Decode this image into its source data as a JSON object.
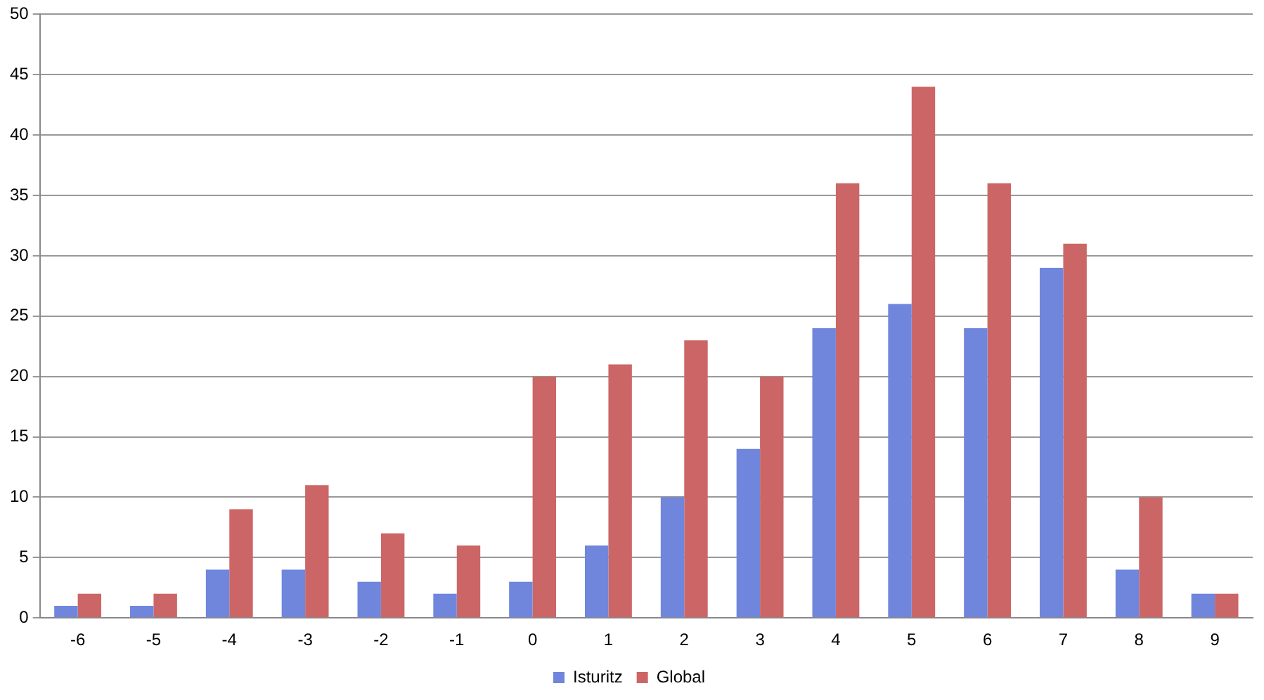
{
  "chart_data": {
    "type": "bar",
    "categories": [
      "-6",
      "-5",
      "-4",
      "-3",
      "-2",
      "-1",
      "0",
      "1",
      "2",
      "3",
      "4",
      "5",
      "6",
      "7",
      "8",
      "9"
    ],
    "series": [
      {
        "name": "Isturitz",
        "color": "#6f86dc",
        "values": [
          1,
          1,
          4,
          4,
          3,
          2,
          3,
          6,
          10,
          14,
          24,
          26,
          24,
          29,
          4,
          2
        ]
      },
      {
        "name": "Global",
        "color": "#cc6666",
        "values": [
          2,
          2,
          9,
          11,
          7,
          6,
          20,
          21,
          23,
          20,
          36,
          44,
          36,
          31,
          10,
          2
        ]
      }
    ],
    "ylim": [
      0,
      50
    ],
    "yticks": [
      0,
      5,
      10,
      15,
      20,
      25,
      30,
      35,
      40,
      45,
      50
    ],
    "grid": "y",
    "legend": "bottom"
  }
}
